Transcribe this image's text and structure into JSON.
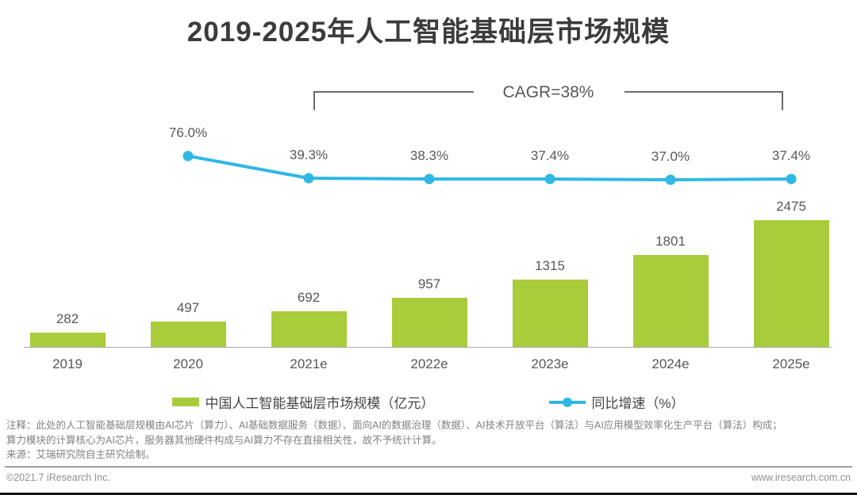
{
  "title": "2019-2025年人工智能基础层市场规模",
  "cagr_label": "CAGR=38%",
  "colors": {
    "bar": "#a9cc3b",
    "line": "#2fb8e6",
    "label_text": "#595757",
    "bracket": "#6a6a6a"
  },
  "chart_data": {
    "type": "bar",
    "categories": [
      "2019",
      "2020",
      "2021e",
      "2022e",
      "2023e",
      "2024e",
      "2025e"
    ],
    "series": [
      {
        "name": "中国人工智能基础层市场规模（亿元）",
        "type": "bar",
        "color": "#a9cc3b",
        "values": [
          282,
          497,
          692,
          957,
          1315,
          1801,
          2475
        ]
      },
      {
        "name": "同比增速（%）",
        "type": "line",
        "color": "#2fb8e6",
        "values": [
          null,
          76.0,
          39.3,
          38.3,
          37.4,
          37.0,
          37.4
        ],
        "labels": [
          "",
          "76.0%",
          "39.3%",
          "38.3%",
          "37.4%",
          "37.0%",
          "37.4%"
        ]
      }
    ],
    "annotation": "CAGR=38%",
    "title": "2019-2025年人工智能基础层市场规模",
    "xlabel": "",
    "ylabel": "",
    "grid": false,
    "legend_position": "bottom"
  },
  "legend": {
    "bar_label": "中国人工智能基础层市场规模（亿元）",
    "line_label": "同比增速（%）"
  },
  "notes": {
    "line1": "注释：此处的人工智能基础层规模由AI芯片（算力）、AI基础数据服务（数据）、面向AI的数据治理（数据）、AI技术开放平台（算法）与AI应用模型效率化生产平台（算法）构成；",
    "line2": "算力模块的计算核心为AI芯片，服务器其他硬件构成与AI算力不存在直接相关性，故不予统计计算。",
    "source": "来源：艾瑞研究院自主研究绘制。"
  },
  "footer": {
    "left": "©2021.7 iResearch Inc.",
    "right": "www.iresearch.com.cn"
  }
}
